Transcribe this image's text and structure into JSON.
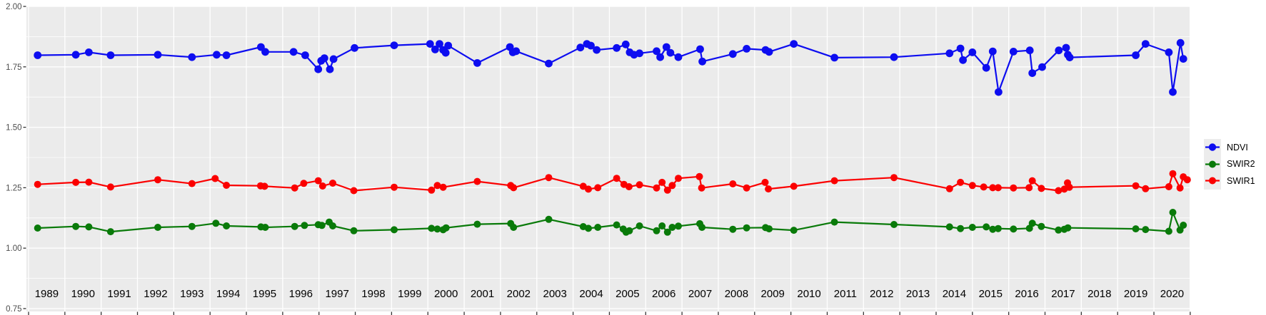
{
  "chart_data": {
    "type": "line",
    "title": "",
    "xlabel": "",
    "ylabel": "",
    "x_axis_range": [
      1989,
      2021
    ],
    "x_year_labels": [
      "1989",
      "1990",
      "1991",
      "1992",
      "1993",
      "1994",
      "1995",
      "1996",
      "1997",
      "1998",
      "1999",
      "2000",
      "2001",
      "2002",
      "2003",
      "2004",
      "2005",
      "2006",
      "2007",
      "2008",
      "2009",
      "2010",
      "2011",
      "2012",
      "2013",
      "2014",
      "2015",
      "2016",
      "2017",
      "2018",
      "2019",
      "2020"
    ],
    "y_ticks": [
      0.75,
      1.0,
      1.25,
      1.5,
      1.75,
      2.0
    ],
    "y_tick_labels": [
      "0.75",
      "1.00",
      "1.25",
      "1.50",
      "1.75",
      "2.00"
    ],
    "ylim": [
      0.75,
      2.0
    ],
    "grid": "white major gridlines per year and per 0.25; white minor horizontal gridlines per 0.125; grey panel",
    "legend_position": "right-center",
    "series": [
      {
        "name": "NDVI",
        "color": "#0d0df0",
        "points": [
          [
            1989.25,
            1.798
          ],
          [
            1990.3,
            1.8
          ],
          [
            1990.66,
            1.81
          ],
          [
            1991.26,
            1.798
          ],
          [
            1992.56,
            1.8
          ],
          [
            1993.5,
            1.79
          ],
          [
            1994.18,
            1.8
          ],
          [
            1994.45,
            1.798
          ],
          [
            1995.4,
            1.832
          ],
          [
            1995.52,
            1.812
          ],
          [
            1996.3,
            1.812
          ],
          [
            1996.62,
            1.798
          ],
          [
            1996.98,
            1.74
          ],
          [
            1997.06,
            1.775
          ],
          [
            1997.15,
            1.786
          ],
          [
            1997.3,
            1.74
          ],
          [
            1997.4,
            1.782
          ],
          [
            1997.98,
            1.828
          ],
          [
            1999.07,
            1.839
          ],
          [
            2000.06,
            1.845
          ],
          [
            2000.2,
            1.822
          ],
          [
            2000.32,
            1.845
          ],
          [
            2000.42,
            1.82
          ],
          [
            2000.49,
            1.808
          ],
          [
            2000.56,
            1.838
          ],
          [
            2001.36,
            1.766
          ],
          [
            2002.26,
            1.832
          ],
          [
            2002.34,
            1.81
          ],
          [
            2002.43,
            1.815
          ],
          [
            2003.33,
            1.764
          ],
          [
            2004.2,
            1.83
          ],
          [
            2004.38,
            1.845
          ],
          [
            2004.49,
            1.838
          ],
          [
            2004.65,
            1.82
          ],
          [
            2005.2,
            1.828
          ],
          [
            2005.45,
            1.843
          ],
          [
            2005.56,
            1.81
          ],
          [
            2005.68,
            1.8
          ],
          [
            2005.83,
            1.806
          ],
          [
            2006.3,
            1.815
          ],
          [
            2006.4,
            1.79
          ],
          [
            2006.57,
            1.832
          ],
          [
            2006.68,
            1.808
          ],
          [
            2006.9,
            1.79
          ],
          [
            2007.5,
            1.823
          ],
          [
            2007.56,
            1.772
          ],
          [
            2008.4,
            1.803
          ],
          [
            2008.78,
            1.825
          ],
          [
            2009.3,
            1.82
          ],
          [
            2009.4,
            1.812
          ],
          [
            2010.08,
            1.845
          ],
          [
            2011.2,
            1.788
          ],
          [
            2012.84,
            1.79
          ],
          [
            2014.37,
            1.806
          ],
          [
            2014.67,
            1.826
          ],
          [
            2014.74,
            1.778
          ],
          [
            2015.0,
            1.81
          ],
          [
            2015.38,
            1.746
          ],
          [
            2015.56,
            1.814
          ],
          [
            2015.72,
            1.646
          ],
          [
            2016.13,
            1.813
          ],
          [
            2016.58,
            1.818
          ],
          [
            2016.65,
            1.724
          ],
          [
            2016.92,
            1.749
          ],
          [
            2017.38,
            1.818
          ],
          [
            2017.58,
            1.829
          ],
          [
            2017.63,
            1.8
          ],
          [
            2017.68,
            1.789
          ],
          [
            2019.5,
            1.798
          ],
          [
            2019.77,
            1.845
          ],
          [
            2020.41,
            1.81
          ],
          [
            2020.52,
            1.646
          ],
          [
            2020.73,
            1.849
          ],
          [
            2020.81,
            1.783
          ]
        ]
      },
      {
        "name": "SWIR2",
        "color": "#097a09",
        "points": [
          [
            1989.25,
            1.083
          ],
          [
            1990.3,
            1.09
          ],
          [
            1990.66,
            1.088
          ],
          [
            1991.26,
            1.068
          ],
          [
            1992.56,
            1.086
          ],
          [
            1993.5,
            1.09
          ],
          [
            1994.16,
            1.103
          ],
          [
            1994.45,
            1.092
          ],
          [
            1995.4,
            1.088
          ],
          [
            1995.52,
            1.086
          ],
          [
            1996.33,
            1.09
          ],
          [
            1996.6,
            1.094
          ],
          [
            1996.98,
            1.097
          ],
          [
            1997.08,
            1.094
          ],
          [
            1997.28,
            1.108
          ],
          [
            1997.38,
            1.092
          ],
          [
            1997.96,
            1.072
          ],
          [
            1999.07,
            1.076
          ],
          [
            2000.1,
            1.082
          ],
          [
            2000.26,
            1.079
          ],
          [
            2000.42,
            1.076
          ],
          [
            2000.5,
            1.084
          ],
          [
            2001.36,
            1.099
          ],
          [
            2002.28,
            1.102
          ],
          [
            2002.36,
            1.086
          ],
          [
            2003.33,
            1.119
          ],
          [
            2004.28,
            1.089
          ],
          [
            2004.42,
            1.082
          ],
          [
            2004.68,
            1.086
          ],
          [
            2005.2,
            1.096
          ],
          [
            2005.38,
            1.079
          ],
          [
            2005.46,
            1.066
          ],
          [
            2005.55,
            1.072
          ],
          [
            2005.83,
            1.092
          ],
          [
            2006.3,
            1.072
          ],
          [
            2006.45,
            1.092
          ],
          [
            2006.6,
            1.066
          ],
          [
            2006.73,
            1.086
          ],
          [
            2006.9,
            1.091
          ],
          [
            2007.49,
            1.101
          ],
          [
            2007.55,
            1.086
          ],
          [
            2008.4,
            1.078
          ],
          [
            2008.78,
            1.084
          ],
          [
            2009.3,
            1.085
          ],
          [
            2009.4,
            1.08
          ],
          [
            2010.08,
            1.074
          ],
          [
            2011.2,
            1.108
          ],
          [
            2012.84,
            1.098
          ],
          [
            2014.37,
            1.088
          ],
          [
            2014.67,
            1.081
          ],
          [
            2015.0,
            1.086
          ],
          [
            2015.38,
            1.088
          ],
          [
            2015.56,
            1.078
          ],
          [
            2015.71,
            1.081
          ],
          [
            2016.13,
            1.079
          ],
          [
            2016.57,
            1.082
          ],
          [
            2016.65,
            1.103
          ],
          [
            2016.9,
            1.09
          ],
          [
            2017.37,
            1.075
          ],
          [
            2017.53,
            1.078
          ],
          [
            2017.63,
            1.084
          ],
          [
            2019.5,
            1.08
          ],
          [
            2019.77,
            1.077
          ],
          [
            2020.41,
            1.07
          ],
          [
            2020.52,
            1.148
          ],
          [
            2020.72,
            1.075
          ],
          [
            2020.81,
            1.095
          ]
        ]
      },
      {
        "name": "SWIR1",
        "color": "#fb0000",
        "points": [
          [
            1989.25,
            1.264
          ],
          [
            1990.3,
            1.272
          ],
          [
            1990.66,
            1.273
          ],
          [
            1991.26,
            1.253
          ],
          [
            1992.56,
            1.283
          ],
          [
            1993.5,
            1.267
          ],
          [
            1994.14,
            1.288
          ],
          [
            1994.45,
            1.26
          ],
          [
            1995.39,
            1.258
          ],
          [
            1995.5,
            1.256
          ],
          [
            1996.33,
            1.249
          ],
          [
            1996.58,
            1.268
          ],
          [
            1996.98,
            1.279
          ],
          [
            1997.1,
            1.257
          ],
          [
            1997.38,
            1.269
          ],
          [
            1997.96,
            1.238
          ],
          [
            1999.07,
            1.252
          ],
          [
            2000.1,
            1.24
          ],
          [
            2000.26,
            1.259
          ],
          [
            2000.42,
            1.252
          ],
          [
            2001.36,
            1.276
          ],
          [
            2002.28,
            1.259
          ],
          [
            2002.36,
            1.25
          ],
          [
            2003.33,
            1.292
          ],
          [
            2004.28,
            1.256
          ],
          [
            2004.42,
            1.244
          ],
          [
            2004.68,
            1.25
          ],
          [
            2005.2,
            1.289
          ],
          [
            2005.4,
            1.264
          ],
          [
            2005.54,
            1.254
          ],
          [
            2005.83,
            1.262
          ],
          [
            2006.3,
            1.249
          ],
          [
            2006.45,
            1.272
          ],
          [
            2006.6,
            1.24
          ],
          [
            2006.73,
            1.259
          ],
          [
            2006.9,
            1.289
          ],
          [
            2007.48,
            1.296
          ],
          [
            2007.54,
            1.249
          ],
          [
            2008.4,
            1.266
          ],
          [
            2008.78,
            1.249
          ],
          [
            2009.29,
            1.272
          ],
          [
            2009.38,
            1.245
          ],
          [
            2010.08,
            1.256
          ],
          [
            2011.2,
            1.279
          ],
          [
            2012.84,
            1.292
          ],
          [
            2014.37,
            1.246
          ],
          [
            2014.67,
            1.272
          ],
          [
            2015.0,
            1.259
          ],
          [
            2015.31,
            1.253
          ],
          [
            2015.56,
            1.25
          ],
          [
            2015.71,
            1.25
          ],
          [
            2016.13,
            1.249
          ],
          [
            2016.56,
            1.25
          ],
          [
            2016.65,
            1.279
          ],
          [
            2016.9,
            1.247
          ],
          [
            2017.37,
            1.238
          ],
          [
            2017.53,
            1.244
          ],
          [
            2017.62,
            1.27
          ],
          [
            2017.67,
            1.252
          ],
          [
            2019.5,
            1.258
          ],
          [
            2019.77,
            1.246
          ],
          [
            2020.41,
            1.254
          ],
          [
            2020.52,
            1.308
          ],
          [
            2020.72,
            1.249
          ],
          [
            2020.81,
            1.295
          ],
          [
            2020.92,
            1.283
          ]
        ]
      }
    ]
  },
  "legend": {
    "items": [
      {
        "label": "NDVI",
        "series": "NDVI"
      },
      {
        "label": "SWIR2",
        "series": "SWIR2"
      },
      {
        "label": "SWIR1",
        "series": "SWIR1"
      }
    ]
  },
  "style": {
    "panel_bg": "#ebebeb",
    "grid_color": "#ffffff",
    "y_axis_text_color": "#4d4d4d",
    "x_axis_text_color": "#000000",
    "tick_color": "#333333",
    "legend_key_bg": "#ececec"
  }
}
